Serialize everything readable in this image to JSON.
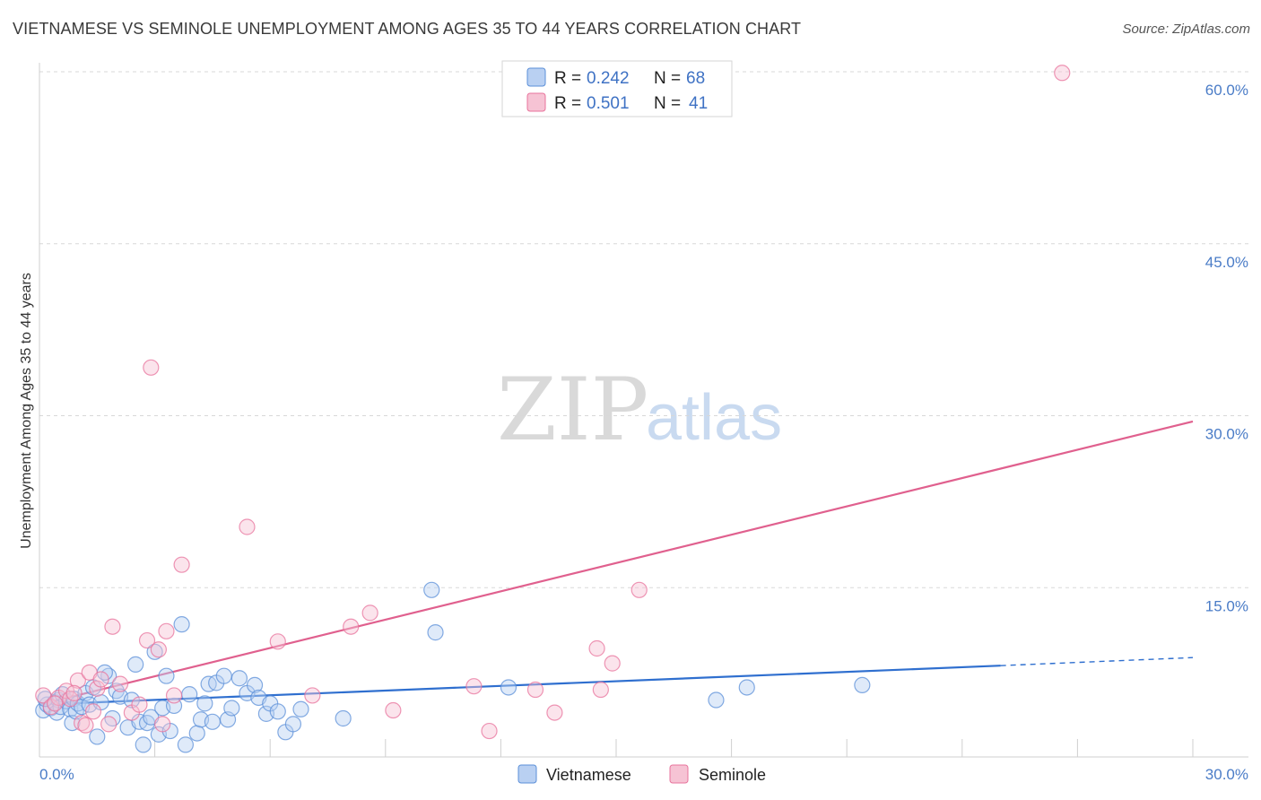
{
  "title": "VIETNAMESE VS SEMINOLE UNEMPLOYMENT AMONG AGES 35 TO 44 YEARS CORRELATION CHART",
  "source": "Source: ZipAtlas.com",
  "watermark": {
    "zip": "ZIP",
    "atlas": "atlas"
  },
  "colors": {
    "vietnamese": "#5b8fd8",
    "vietnamese_fill": "#b9d0f2",
    "seminole": "#e8739c",
    "seminole_fill": "#f6c3d4",
    "tick": "#4a7cc7",
    "grid": "#d8d8d8"
  },
  "legend": {
    "rows": [
      {
        "r_label": "R =",
        "r_value": "0.242",
        "n_label": "N =",
        "n_value": "68",
        "series": "vietnamese"
      },
      {
        "r_label": "R =",
        "r_value": "0.501",
        "n_label": "N =",
        "n_value": "41",
        "series": "seminole"
      }
    ]
  },
  "bottom_legend": [
    "Vietnamese",
    "Seminole"
  ],
  "chart_data": {
    "type": "scatter",
    "title": "VIETNAMESE VS SEMINOLE UNEMPLOYMENT AMONG AGES 35 TO 44 YEARS CORRELATION CHART",
    "xlabel": "",
    "ylabel": "Unemployment Among Ages 35 to 44 years",
    "xlim": [
      0,
      30
    ],
    "ylim": [
      0,
      60
    ],
    "x_tick_labels": [
      "0.0%",
      "30.0%"
    ],
    "y_ticks": [
      15,
      30,
      45,
      60
    ],
    "y_tick_labels": [
      "15.0%",
      "30.0%",
      "45.0%",
      "60.0%"
    ],
    "series": [
      {
        "name": "Vietnamese",
        "points": [
          [
            0.1,
            4.3
          ],
          [
            0.2,
            4.8
          ],
          [
            0.3,
            4.5
          ],
          [
            0.4,
            5.0
          ],
          [
            0.45,
            4.1
          ],
          [
            0.5,
            5.2
          ],
          [
            0.55,
            4.6
          ],
          [
            0.6,
            5.7
          ],
          [
            0.7,
            5.1
          ],
          [
            0.8,
            4.4
          ],
          [
            0.85,
            3.2
          ],
          [
            0.9,
            5.3
          ],
          [
            0.95,
            4.2
          ],
          [
            1.0,
            4.9
          ],
          [
            1.1,
            4.6
          ],
          [
            1.2,
            5.8
          ],
          [
            1.3,
            4.8
          ],
          [
            1.4,
            6.3
          ],
          [
            1.5,
            2.0
          ],
          [
            1.6,
            5.0
          ],
          [
            1.8,
            7.3
          ],
          [
            1.9,
            3.6
          ],
          [
            2.0,
            6.0
          ],
          [
            2.1,
            5.5
          ],
          [
            2.3,
            2.8
          ],
          [
            2.5,
            8.3
          ],
          [
            2.6,
            3.3
          ],
          [
            2.7,
            1.3
          ],
          [
            2.8,
            3.2
          ],
          [
            2.9,
            3.7
          ],
          [
            3.0,
            9.4
          ],
          [
            3.1,
            2.2
          ],
          [
            3.2,
            4.5
          ],
          [
            3.3,
            7.3
          ],
          [
            3.4,
            2.5
          ],
          [
            3.5,
            4.7
          ],
          [
            3.7,
            11.8
          ],
          [
            3.8,
            1.3
          ],
          [
            3.9,
            5.7
          ],
          [
            4.1,
            2.3
          ],
          [
            4.2,
            3.5
          ],
          [
            4.3,
            4.9
          ],
          [
            4.4,
            6.6
          ],
          [
            4.5,
            3.3
          ],
          [
            4.6,
            6.7
          ],
          [
            4.8,
            7.3
          ],
          [
            4.9,
            3.5
          ],
          [
            5.0,
            4.5
          ],
          [
            5.2,
            7.1
          ],
          [
            5.4,
            5.8
          ],
          [
            5.6,
            6.5
          ],
          [
            5.7,
            5.4
          ],
          [
            5.9,
            4.0
          ],
          [
            6.0,
            4.9
          ],
          [
            6.4,
            2.4
          ],
          [
            6.6,
            3.1
          ],
          [
            6.8,
            4.4
          ],
          [
            7.9,
            3.6
          ],
          [
            10.2,
            14.8
          ],
          [
            10.3,
            11.1
          ],
          [
            12.2,
            6.3
          ],
          [
            17.6,
            5.2
          ],
          [
            18.4,
            6.3
          ],
          [
            21.4,
            6.5
          ],
          [
            0.15,
            5.3
          ],
          [
            1.7,
            7.6
          ],
          [
            2.4,
            5.2
          ],
          [
            6.2,
            4.2
          ]
        ],
        "trend": {
          "x": [
            0,
            25
          ],
          "y": [
            4.8,
            8.2
          ],
          "dashed_to": [
            30,
            8.9
          ]
        }
      },
      {
        "name": "Seminole",
        "points": [
          [
            0.1,
            5.6
          ],
          [
            0.3,
            4.6
          ],
          [
            0.5,
            5.4
          ],
          [
            0.7,
            6.0
          ],
          [
            0.8,
            5.3
          ],
          [
            1.0,
            6.9
          ],
          [
            1.1,
            3.2
          ],
          [
            1.3,
            7.6
          ],
          [
            1.4,
            4.2
          ],
          [
            1.5,
            6.2
          ],
          [
            1.6,
            7.0
          ],
          [
            1.8,
            3.1
          ],
          [
            1.9,
            11.6
          ],
          [
            2.1,
            6.6
          ],
          [
            2.4,
            4.1
          ],
          [
            2.6,
            4.8
          ],
          [
            2.8,
            10.4
          ],
          [
            2.9,
            34.2
          ],
          [
            3.1,
            9.6
          ],
          [
            3.2,
            3.1
          ],
          [
            3.3,
            11.2
          ],
          [
            3.5,
            5.6
          ],
          [
            3.7,
            17.0
          ],
          [
            5.4,
            20.3
          ],
          [
            6.2,
            10.3
          ],
          [
            7.1,
            5.6
          ],
          [
            8.1,
            11.6
          ],
          [
            8.6,
            12.8
          ],
          [
            9.2,
            4.3
          ],
          [
            11.3,
            6.4
          ],
          [
            11.7,
            2.5
          ],
          [
            12.9,
            6.1
          ],
          [
            13.4,
            4.1
          ],
          [
            14.5,
            9.7
          ],
          [
            14.6,
            6.1
          ],
          [
            14.9,
            8.4
          ],
          [
            15.6,
            14.8
          ],
          [
            26.6,
            59.9
          ],
          [
            0.4,
            4.9
          ],
          [
            0.9,
            5.8
          ],
          [
            1.2,
            3.0
          ]
        ],
        "trend": {
          "x": [
            0,
            30
          ],
          "y": [
            4.8,
            29.5
          ]
        }
      }
    ]
  }
}
